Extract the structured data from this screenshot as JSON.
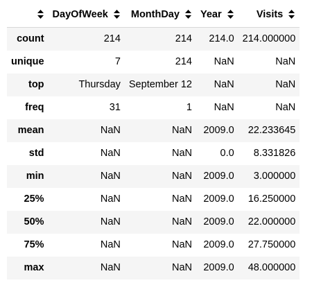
{
  "table": {
    "columns": [
      {
        "label": "",
        "sortable": true
      },
      {
        "label": "DayOfWeek",
        "sortable": true
      },
      {
        "label": "MonthDay",
        "sortable": true
      },
      {
        "label": "Year",
        "sortable": true
      },
      {
        "label": "Visits",
        "sortable": true
      }
    ],
    "rows": [
      {
        "index": "count",
        "cells": [
          "214",
          "214",
          "214.0",
          "214.000000"
        ]
      },
      {
        "index": "unique",
        "cells": [
          "7",
          "214",
          "NaN",
          "NaN"
        ]
      },
      {
        "index": "top",
        "cells": [
          "Thursday",
          "September 12",
          "NaN",
          "NaN"
        ]
      },
      {
        "index": "freq",
        "cells": [
          "31",
          "1",
          "NaN",
          "NaN"
        ]
      },
      {
        "index": "mean",
        "cells": [
          "NaN",
          "NaN",
          "2009.0",
          "22.233645"
        ]
      },
      {
        "index": "std",
        "cells": [
          "NaN",
          "NaN",
          "0.0",
          "8.331826"
        ]
      },
      {
        "index": "min",
        "cells": [
          "NaN",
          "NaN",
          "2009.0",
          "3.000000"
        ]
      },
      {
        "index": "25%",
        "cells": [
          "NaN",
          "NaN",
          "2009.0",
          "16.250000"
        ]
      },
      {
        "index": "50%",
        "cells": [
          "NaN",
          "NaN",
          "2009.0",
          "22.000000"
        ]
      },
      {
        "index": "75%",
        "cells": [
          "NaN",
          "NaN",
          "2009.0",
          "27.750000"
        ]
      },
      {
        "index": "max",
        "cells": [
          "NaN",
          "NaN",
          "2009.0",
          "48.000000"
        ]
      }
    ],
    "sort_icon": "sort-up-down-icon",
    "stripe_color": "#f5f5f5",
    "border_color": "#d8d8d8"
  }
}
